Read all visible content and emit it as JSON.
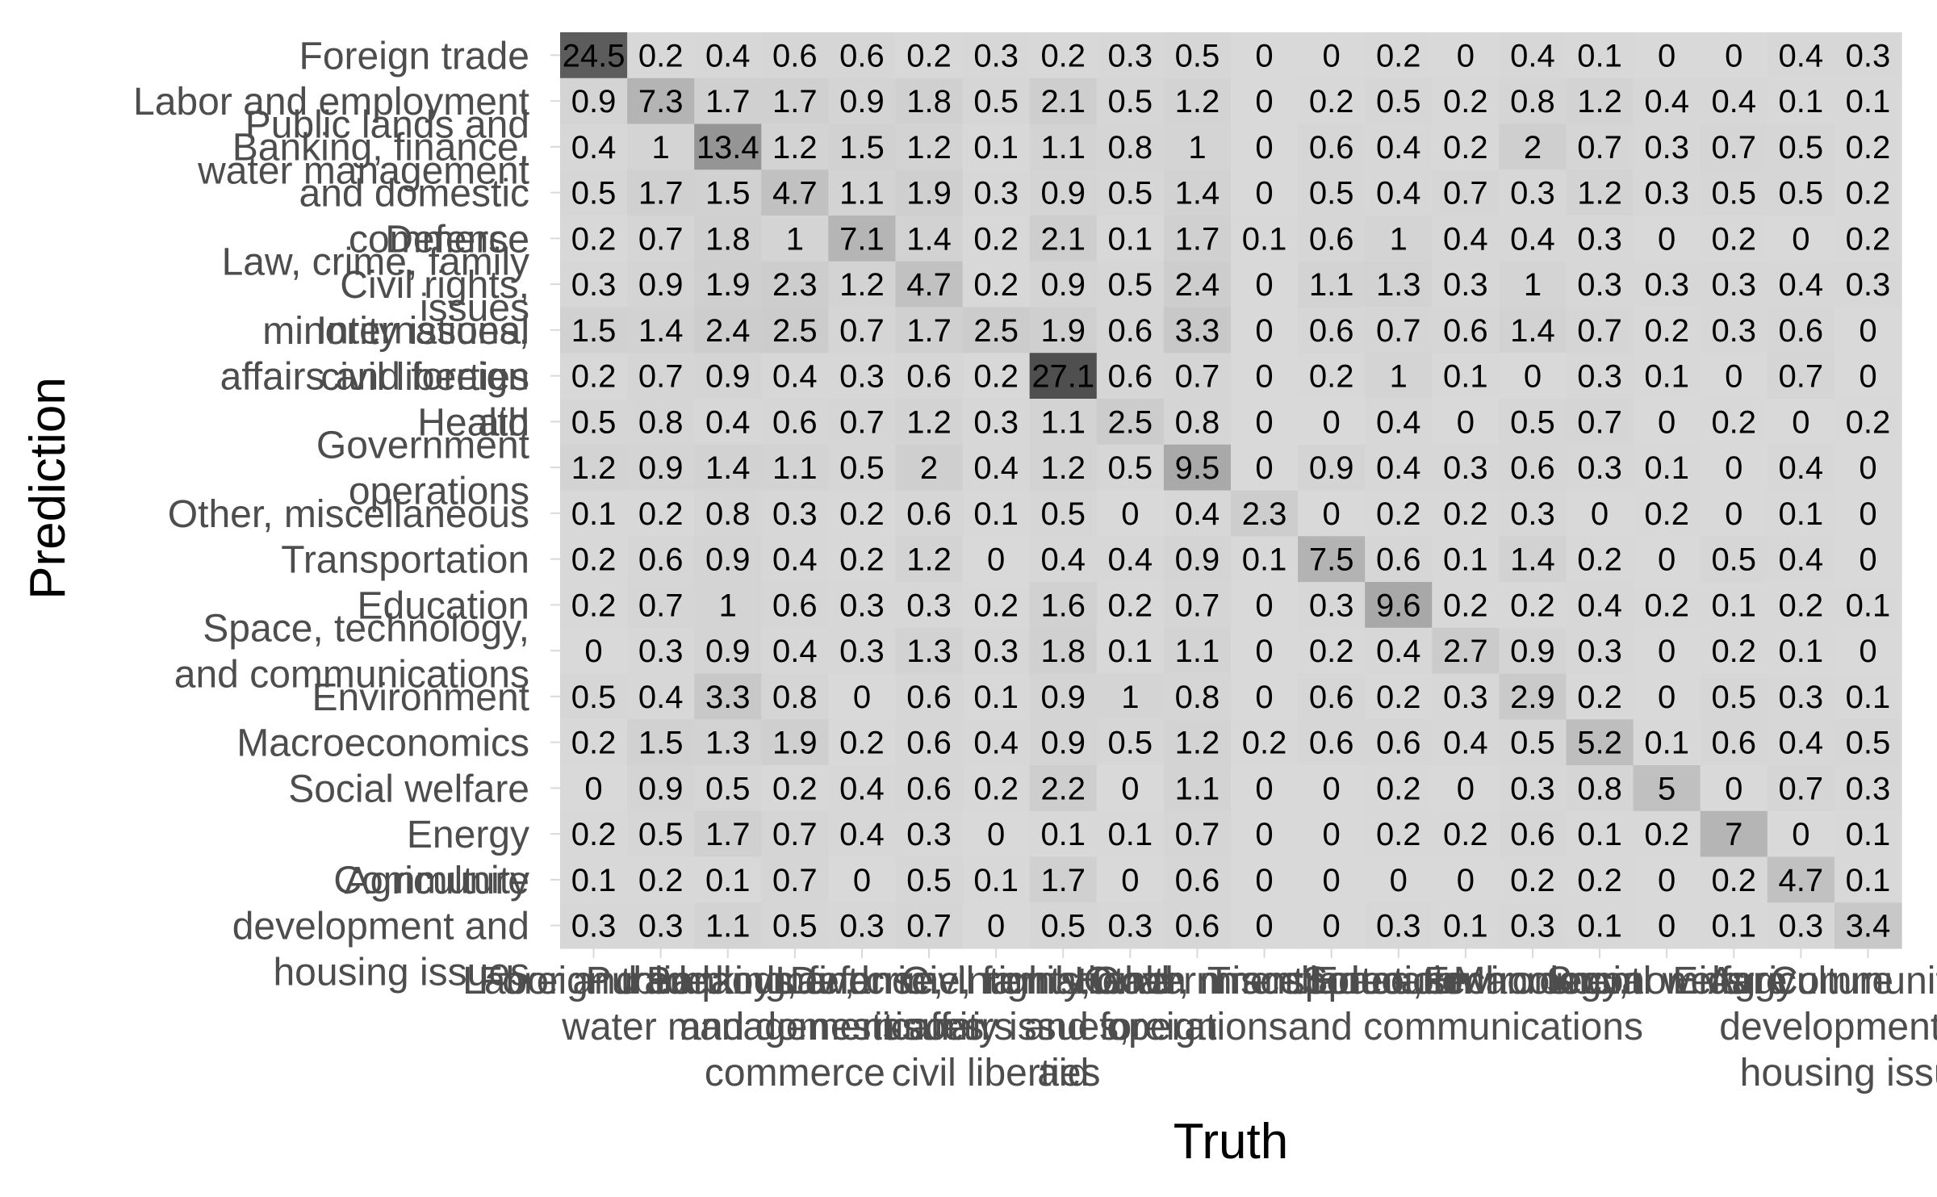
{
  "chart_data": {
    "type": "heatmap",
    "title": "",
    "xlabel": "Truth",
    "ylabel": "Prediction",
    "categories": [
      "Foreign trade",
      "Labor and employment",
      "Public lands and water management",
      "Banking, finance, and domestic commerce",
      "Defense",
      "Law, crime, family issues",
      "Civil rights, minority issues, civil liberties",
      "International affairs and foreign aid",
      "Health",
      "Government operations",
      "Other, miscellaneous",
      "Transportation",
      "Education",
      "Space, technology, and communications",
      "Environment",
      "Macroeconomics",
      "Social welfare",
      "Energy",
      "Agriculture",
      "Community development and housing issues"
    ],
    "values": [
      [
        24.5,
        0.2,
        0.4,
        0.6,
        0.6,
        0.2,
        0.3,
        0.2,
        0.3,
        0.5,
        0,
        0,
        0.2,
        0,
        0.4,
        0.1,
        0,
        0,
        0.4,
        0.3
      ],
      [
        0.9,
        7.3,
        1.7,
        1.7,
        0.9,
        1.8,
        0.5,
        2.1,
        0.5,
        1.2,
        0,
        0.2,
        0.5,
        0.2,
        0.8,
        1.2,
        0.4,
        0.4,
        0.1,
        0.1
      ],
      [
        0.4,
        1,
        13.4,
        1.2,
        1.5,
        1.2,
        0.1,
        1.1,
        0.8,
        1,
        0,
        0.6,
        0.4,
        0.2,
        2,
        0.7,
        0.3,
        0.7,
        0.5,
        0.2
      ],
      [
        0.5,
        1.7,
        1.5,
        4.7,
        1.1,
        1.9,
        0.3,
        0.9,
        0.5,
        1.4,
        0,
        0.5,
        0.4,
        0.7,
        0.3,
        1.2,
        0.3,
        0.5,
        0.5,
        0.2
      ],
      [
        0.2,
        0.7,
        1.8,
        1,
        7.1,
        1.4,
        0.2,
        2.1,
        0.1,
        1.7,
        0.1,
        0.6,
        1,
        0.4,
        0.4,
        0.3,
        0,
        0.2,
        0,
        0.2
      ],
      [
        0.3,
        0.9,
        1.9,
        2.3,
        1.2,
        4.7,
        0.2,
        0.9,
        0.5,
        2.4,
        0,
        1.1,
        1.3,
        0.3,
        1,
        0.3,
        0.3,
        0.3,
        0.4,
        0.3
      ],
      [
        1.5,
        1.4,
        2.4,
        2.5,
        0.7,
        1.7,
        2.5,
        1.9,
        0.6,
        3.3,
        0,
        0.6,
        0.7,
        0.6,
        1.4,
        0.7,
        0.2,
        0.3,
        0.6,
        0
      ],
      [
        0.2,
        0.7,
        0.9,
        0.4,
        0.3,
        0.6,
        0.2,
        27.1,
        0.6,
        0.7,
        0,
        0.2,
        1,
        0.1,
        0,
        0.3,
        0.1,
        0,
        0.7,
        0
      ],
      [
        0.5,
        0.8,
        0.4,
        0.6,
        0.7,
        1.2,
        0.3,
        1.1,
        2.5,
        0.8,
        0,
        0,
        0.4,
        0,
        0.5,
        0.7,
        0,
        0.2,
        0,
        0.2
      ],
      [
        1.2,
        0.9,
        1.4,
        1.1,
        0.5,
        2,
        0.4,
        1.2,
        0.5,
        9.5,
        0,
        0.9,
        0.4,
        0.3,
        0.6,
        0.3,
        0.1,
        0,
        0.4,
        0
      ],
      [
        0.1,
        0.2,
        0.8,
        0.3,
        0.2,
        0.6,
        0.1,
        0.5,
        0,
        0.4,
        2.3,
        0,
        0.2,
        0.2,
        0.3,
        0,
        0.2,
        0,
        0.1,
        0
      ],
      [
        0.2,
        0.6,
        0.9,
        0.4,
        0.2,
        1.2,
        0,
        0.4,
        0.4,
        0.9,
        0.1,
        7.5,
        0.6,
        0.1,
        1.4,
        0.2,
        0,
        0.5,
        0.4,
        0
      ],
      [
        0.2,
        0.7,
        1,
        0.6,
        0.3,
        0.3,
        0.2,
        1.6,
        0.2,
        0.7,
        0,
        0.3,
        9.6,
        0.2,
        0.2,
        0.4,
        0.2,
        0.1,
        0.2,
        0.1
      ],
      [
        0,
        0.3,
        0.9,
        0.4,
        0.3,
        1.3,
        0.3,
        1.8,
        0.1,
        1.1,
        0,
        0.2,
        0.4,
        2.7,
        0.9,
        0.3,
        0,
        0.2,
        0.1,
        0
      ],
      [
        0.5,
        0.4,
        3.3,
        0.8,
        0,
        0.6,
        0.1,
        0.9,
        1,
        0.8,
        0,
        0.6,
        0.2,
        0.3,
        2.9,
        0.2,
        0,
        0.5,
        0.3,
        0.1
      ],
      [
        0.2,
        1.5,
        1.3,
        1.9,
        0.2,
        0.6,
        0.4,
        0.9,
        0.5,
        1.2,
        0.2,
        0.6,
        0.6,
        0.4,
        0.5,
        5.2,
        0.1,
        0.6,
        0.4,
        0.5
      ],
      [
        0,
        0.9,
        0.5,
        0.2,
        0.4,
        0.6,
        0.2,
        2.2,
        0,
        1.1,
        0,
        0,
        0.2,
        0,
        0.3,
        0.8,
        5,
        0,
        0.7,
        0.3
      ],
      [
        0.2,
        0.5,
        1.7,
        0.7,
        0.4,
        0.3,
        0,
        0.1,
        0.1,
        0.7,
        0,
        0,
        0.2,
        0.2,
        0.6,
        0.1,
        0.2,
        7,
        0,
        0.1
      ],
      [
        0.1,
        0.2,
        0.1,
        0.7,
        0,
        0.5,
        0.1,
        1.7,
        0,
        0.6,
        0,
        0,
        0,
        0,
        0.2,
        0.2,
        0,
        0.2,
        4.7,
        0.1
      ],
      [
        0.3,
        0.3,
        1.1,
        0.5,
        0.3,
        0.7,
        0,
        0.5,
        0.3,
        0.6,
        0,
        0,
        0.3,
        0.1,
        0.3,
        0.1,
        0,
        0.1,
        0.3,
        3.4
      ]
    ],
    "color_scale": {
      "low": "#d9d9d9",
      "high": "#404040",
      "min": 0,
      "max": 30
    },
    "grid": false,
    "legend": "none"
  }
}
